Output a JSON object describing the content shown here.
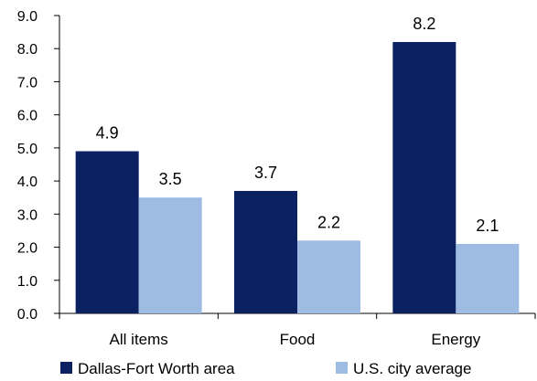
{
  "chart_data": {
    "type": "bar",
    "categories": [
      "All items",
      "Food",
      "Energy"
    ],
    "series": [
      {
        "name": "Dallas-Fort Worth area",
        "color": "#0b2161",
        "values": [
          4.9,
          3.7,
          8.2
        ]
      },
      {
        "name": "U.S. city average",
        "color": "#9dbbe3",
        "values": [
          3.5,
          2.2,
          2.1
        ]
      }
    ],
    "yticks": [
      "0.0",
      "1.0",
      "2.0",
      "3.0",
      "4.0",
      "5.0",
      "6.0",
      "7.0",
      "8.0",
      "9.0"
    ],
    "ylim": [
      0,
      9
    ],
    "data_labels": [
      [
        "4.9",
        "3.7",
        "8.2"
      ],
      [
        "3.5",
        "2.2",
        "2.1"
      ]
    ],
    "grid": false,
    "legend_position": "bottom"
  }
}
